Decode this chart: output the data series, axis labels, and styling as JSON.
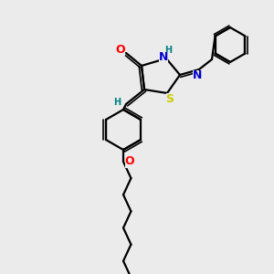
{
  "background_color": "#ebebeb",
  "bond_color": "#000000",
  "atom_colors": {
    "O": "#ff0000",
    "N": "#0000cc",
    "S": "#cccc00",
    "H": "#008080",
    "C": "#000000"
  },
  "figsize": [
    3.0,
    3.0
  ],
  "dpi": 100
}
